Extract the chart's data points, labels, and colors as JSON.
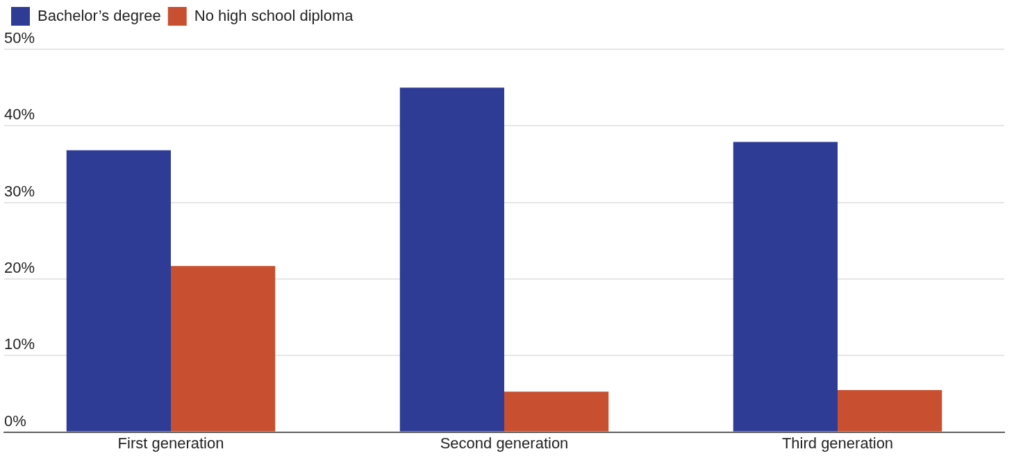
{
  "chart_data": {
    "type": "bar",
    "categories": [
      "First generation",
      "Second generation",
      "Third generation"
    ],
    "series": [
      {
        "name": "Bachelor’s degree",
        "color": "#2e3c96",
        "values": [
          36.8,
          45.0,
          37.9
        ]
      },
      {
        "name": "No high school diploma",
        "color": "#c84f2f",
        "values": [
          21.7,
          5.3,
          5.5
        ]
      }
    ],
    "ylim": [
      0,
      50
    ],
    "yticks": [
      {
        "value": 0,
        "label": "0%"
      },
      {
        "value": 10,
        "label": "10%"
      },
      {
        "value": 20,
        "label": "20%"
      },
      {
        "value": 30,
        "label": "30%"
      },
      {
        "value": 40,
        "label": "40%"
      },
      {
        "value": 50,
        "label": "50%"
      }
    ],
    "grid": "y",
    "legend": "top left"
  }
}
